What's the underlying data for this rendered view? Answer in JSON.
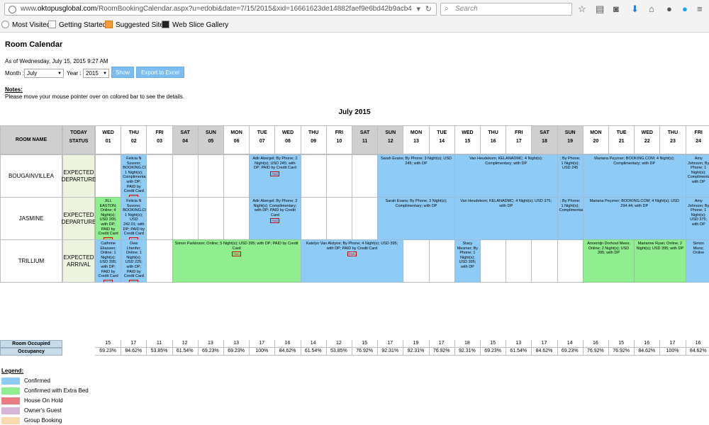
{
  "browser": {
    "url_prefix": "www.",
    "url_domain": "oktopusglobal.com",
    "url_rest": "/RoomBookingCalendar.aspx?u=edobi&date=7/15/2015&xid=16661623de14882faef9e6bd42b9acb4",
    "search_placeholder": "Search",
    "bookmarks": [
      "Most Visited",
      "Getting Started",
      "Suggested Sites",
      "Web Slice Gallery"
    ]
  },
  "page": {
    "title": "Room Calendar",
    "as_of": "As of Wednesday, July 15, 2015 9:27 AM",
    "month_label": "Month :",
    "month_value": "July",
    "year_label": "Year :",
    "year_value": "2015",
    "show_button": "Show",
    "export_button": "Export to Excel",
    "notes_title": "Notes:",
    "notes_text": "Please move your mouse pointer over on colored bar to see the details.",
    "calendar_title": "July 2015"
  },
  "table": {
    "room_header": "ROOM NAME",
    "today_header_1": "TODAY",
    "today_header_2": "STATUS",
    "days": [
      {
        "dow": "WED",
        "d": "01",
        "we": false
      },
      {
        "dow": "THU",
        "d": "02",
        "we": false
      },
      {
        "dow": "FRI",
        "d": "03",
        "we": false
      },
      {
        "dow": "SAT",
        "d": "04",
        "we": true
      },
      {
        "dow": "SUN",
        "d": "05",
        "we": true
      },
      {
        "dow": "MON",
        "d": "06",
        "we": false
      },
      {
        "dow": "TUE",
        "d": "07",
        "we": false
      },
      {
        "dow": "WED",
        "d": "08",
        "we": false
      },
      {
        "dow": "THU",
        "d": "09",
        "we": false
      },
      {
        "dow": "FRI",
        "d": "10",
        "we": false
      },
      {
        "dow": "SAT",
        "d": "11",
        "we": true
      },
      {
        "dow": "SUN",
        "d": "12",
        "we": true
      },
      {
        "dow": "MON",
        "d": "13",
        "we": false
      },
      {
        "dow": "TUE",
        "d": "14",
        "we": false
      },
      {
        "dow": "WED",
        "d": "15",
        "we": false
      },
      {
        "dow": "THU",
        "d": "16",
        "we": false
      },
      {
        "dow": "FRI",
        "d": "17",
        "we": false
      },
      {
        "dow": "SAT",
        "d": "18",
        "we": true
      },
      {
        "dow": "SUN",
        "d": "19",
        "we": true
      },
      {
        "dow": "MON",
        "d": "20",
        "we": false
      },
      {
        "dow": "TUE",
        "d": "21",
        "we": false
      },
      {
        "dow": "WED",
        "d": "22",
        "we": false
      },
      {
        "dow": "THU",
        "d": "23",
        "we": false
      },
      {
        "dow": "FRI",
        "d": "24",
        "we": false
      }
    ],
    "rooms": [
      {
        "name": "BOUGAINVILLEA",
        "status": "EXPECTED DEPARTURE"
      },
      {
        "name": "JASMINE",
        "status": "EXPECTED DEPARTURE"
      },
      {
        "name": "TRILLIUM",
        "status": "EXPECTED ARRIVAL"
      }
    ],
    "paid_label": "PAID",
    "bookings": [
      {
        "room": 0,
        "start": 1,
        "end": 1,
        "type": "confirmed",
        "text": "Felicia N Suvono; BOOKING.COM; 1 Night(s); Complimentary; with DP; PAID by Credit Card",
        "paid": true
      },
      {
        "room": 0,
        "start": 6,
        "end": 7,
        "type": "confirmed",
        "text": "Adir Abergel; By Phone; 2 Night(s); USD 245; with DP; PAID by Credit Card",
        "paid": true
      },
      {
        "room": 0,
        "start": 11,
        "end": 13,
        "type": "confirmed",
        "text": "Sarah Evans; By Phone; 3 Night(s); USD 245; with DP",
        "paid": false
      },
      {
        "room": 0,
        "start": 14,
        "end": 17,
        "type": "confirmed",
        "text": "Van Heudekom; KELANADMC; 4 Night(s); Complimentary; with DP",
        "paid": false
      },
      {
        "room": 0,
        "start": 18,
        "end": 18,
        "type": "confirmed",
        "text": "; By Phone; 1 Night(s); USD 245",
        "paid": false
      },
      {
        "room": 0,
        "start": 19,
        "end": 22,
        "type": "confirmed",
        "text": "Mariana Peyzner; BOOKING.COM; 4 Night(s); Complimentary; with DP",
        "paid": false
      },
      {
        "room": 0,
        "start": 23,
        "end": 23,
        "type": "confirmed",
        "text": "Amy Johnson; By Phone; 1 Night(s); Complimentary; with DP",
        "paid": false
      },
      {
        "room": 1,
        "start": 0,
        "end": 0,
        "type": "extra",
        "text": "JILL EASTON; Online; 4 Night(s); USD 265; with DP; PAID by Credit Card",
        "paid": true
      },
      {
        "room": 1,
        "start": 1,
        "end": 1,
        "type": "confirmed",
        "text": "Felicia N Suvono; BOOKING.COM; 1 Night(s); USD 242.01; with DP; PAID by Credit Card",
        "paid": true
      },
      {
        "room": 1,
        "start": 6,
        "end": 7,
        "type": "confirmed",
        "text": "Adir Abergel; By Phone; 2 Night(s); Complimentary; with DP; PAID by Credit Card",
        "paid": true
      },
      {
        "room": 1,
        "start": 11,
        "end": 13,
        "type": "confirmed",
        "text": "Sarah Evans; By Phone; 3 Night(s); Complimentary; with DP",
        "paid": false
      },
      {
        "room": 1,
        "start": 14,
        "end": 17,
        "type": "confirmed",
        "text": "Van Heudekom; KELANADMC; 4 Night(s); USD 375; with DP",
        "paid": false
      },
      {
        "room": 1,
        "start": 18,
        "end": 18,
        "type": "confirmed",
        "text": "; By Phone; 1 Night(s); Complimentary",
        "paid": false
      },
      {
        "room": 1,
        "start": 19,
        "end": 22,
        "type": "confirmed",
        "text": "Mariana Peyzner; BOOKING.COM; 4 Night(s); USD 294.44; with DP",
        "paid": false
      },
      {
        "room": 1,
        "start": 23,
        "end": 23,
        "type": "confirmed",
        "text": "Amy Johnson; By Phone; 1 Night(s); USD 375; with DP",
        "paid": false
      },
      {
        "room": 2,
        "start": 0,
        "end": 0,
        "type": "confirmed",
        "text": "Cathrine Eliassen; Online; 1 Night(s); USD 395; with DP; PAID by Credit Card",
        "paid": true
      },
      {
        "room": 2,
        "start": 1,
        "end": 1,
        "type": "confirmed",
        "text": "Dew Lhenfer; Online; 1 Night(s); USD 225; with DP; PAID by Credit Card",
        "paid": true
      },
      {
        "room": 2,
        "start": 3,
        "end": 7,
        "type": "extra",
        "text": "Simon Parkinson; Online; 5 Night(s); USD 395; with DP; PAID by Credit Card",
        "paid": true
      },
      {
        "room": 2,
        "start": 8,
        "end": 11,
        "type": "confirmed",
        "text": "Katelyn Van Alstyne; By Phone; 4 Night(s); USD 395; with DP; PAID by Credit Card",
        "paid": true
      },
      {
        "room": 2,
        "start": 14,
        "end": 14,
        "type": "confirmed",
        "text": "Stacy Mesmer; By Phone; 1 Night(s); USD 395; with DP",
        "paid": false
      },
      {
        "room": 2,
        "start": 19,
        "end": 20,
        "type": "extra",
        "text": "Annemijn Dorhout Mees; Online; 2 Night(s); USD 395; with DP",
        "paid": false
      },
      {
        "room": 2,
        "start": 21,
        "end": 22,
        "type": "extra",
        "text": "Marianne Ryan; Online; 2 Night(s); USD 395; with DP",
        "paid": false
      },
      {
        "room": 2,
        "start": 23,
        "end": 23,
        "type": "confirmed",
        "text": "Simon Munz; Online",
        "paid": false
      }
    ],
    "occupied_label": "Room Occupied",
    "occupancy_label": "Occupancy",
    "occupied": [
      "15",
      "17",
      "11",
      "12",
      "13",
      "13",
      "17",
      "16",
      "14",
      "12",
      "15",
      "17",
      "19",
      "17",
      "18",
      "15",
      "13",
      "17",
      "14",
      "16",
      "15",
      "16",
      "17",
      "16"
    ],
    "occupancy": [
      "69.23%",
      "84.62%",
      "53.85%",
      "61.54%",
      "69.23%",
      "69.23%",
      "100%",
      "84.62%",
      "61.54%",
      "53.85%",
      "76.92%",
      "92.31%",
      "92.31%",
      "76.92%",
      "92.31%",
      "69.23%",
      "61.54%",
      "84.62%",
      "69.23%",
      "76.92%",
      "76.92%",
      "84.62%",
      "100%",
      "84.62%"
    ]
  },
  "legend": {
    "title": "Legend:",
    "items": [
      {
        "label": "Confirmed",
        "color": "#8fcbf7"
      },
      {
        "label": "Confirmed with Extra Bed",
        "color": "#90ee90"
      },
      {
        "label": "House On Hold",
        "color": "#e97c82"
      },
      {
        "label": "Owner's Guest",
        "color": "#d6b6d6"
      },
      {
        "label": "Group Booking",
        "color": "#fbd9ae"
      }
    ]
  }
}
